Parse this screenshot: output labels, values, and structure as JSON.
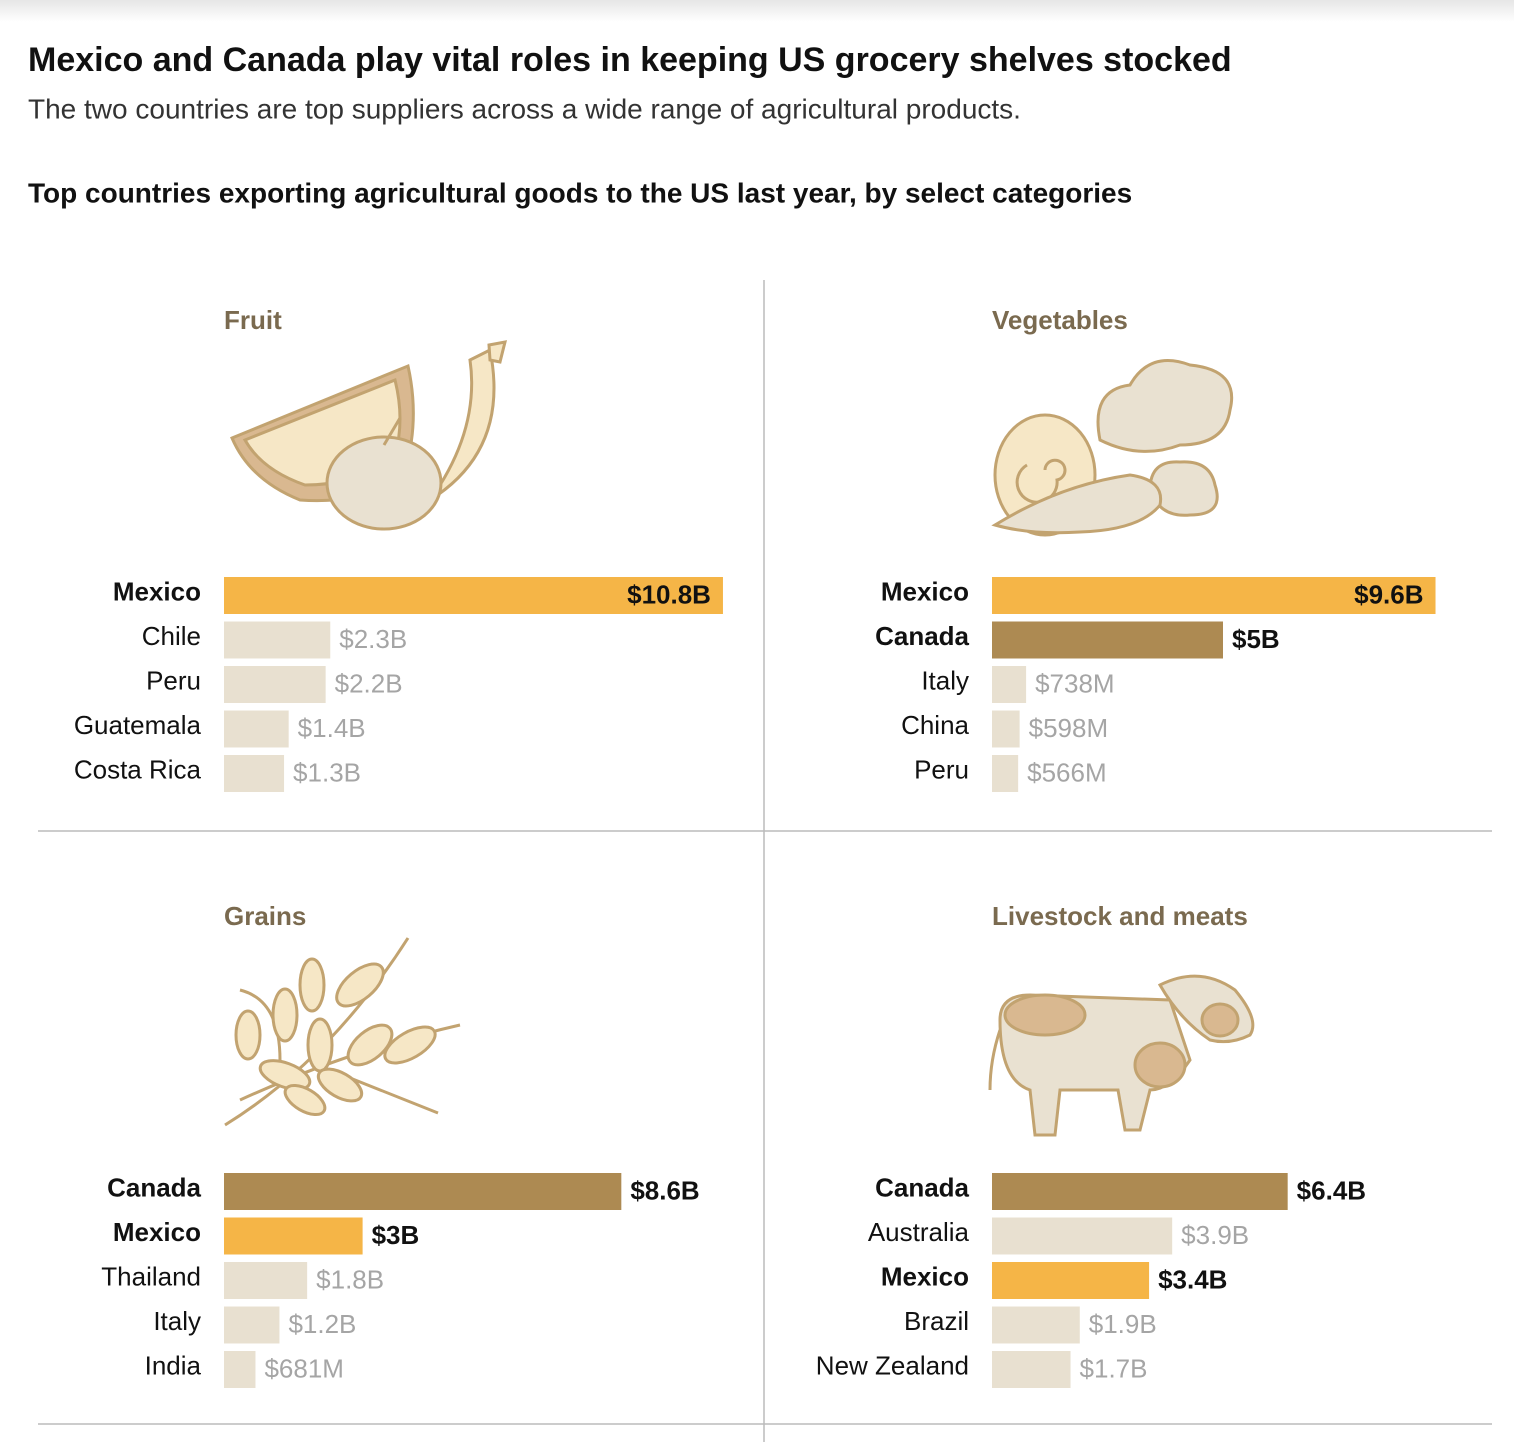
{
  "header": {
    "title": "Mexico and Canada play vital roles in keeping US grocery shelves stocked",
    "subtitle": "The two countries are top suppliers across a wide range of agricultural products.",
    "chart_heading": "Top countries exporting agricultural goods to the US last year, by select categories"
  },
  "chart_data": [
    {
      "type": "bar",
      "orientation": "horizontal",
      "title": "Fruit",
      "categories": [
        "Mexico",
        "Chile",
        "Peru",
        "Guatemala",
        "Costa Rica"
      ],
      "values": [
        10.8,
        2.3,
        2.2,
        1.4,
        1.3
      ],
      "value_labels": [
        "$10.8B",
        "$2.3B",
        "$2.2B",
        "$1.4B",
        "$1.3B"
      ],
      "colors": [
        "#f5b547",
        "#e8e0d0",
        "#e8e0d0",
        "#e8e0d0",
        "#e8e0d0"
      ],
      "highlight": [
        true,
        false,
        false,
        false,
        false
      ]
    },
    {
      "type": "bar",
      "orientation": "horizontal",
      "title": "Vegetables",
      "categories": [
        "Mexico",
        "Canada",
        "Italy",
        "China",
        "Peru"
      ],
      "values": [
        9.6,
        5,
        0.738,
        0.598,
        0.566
      ],
      "value_labels": [
        "$9.6B",
        "$5B",
        "$738M",
        "$598M",
        "$566M"
      ],
      "colors": [
        "#f5b547",
        "#ad8a52",
        "#e8e0d0",
        "#e8e0d0",
        "#e8e0d0"
      ],
      "highlight": [
        true,
        true,
        false,
        false,
        false
      ]
    },
    {
      "type": "bar",
      "orientation": "horizontal",
      "title": "Grains",
      "categories": [
        "Canada",
        "Mexico",
        "Thailand",
        "Italy",
        "India"
      ],
      "values": [
        8.6,
        3,
        1.8,
        1.2,
        0.681
      ],
      "value_labels": [
        "$8.6B",
        "$3B",
        "$1.8B",
        "$1.2B",
        "$681M"
      ],
      "colors": [
        "#ad8a52",
        "#f5b547",
        "#e8e0d0",
        "#e8e0d0",
        "#e8e0d0"
      ],
      "highlight": [
        true,
        true,
        false,
        false,
        false
      ]
    },
    {
      "type": "bar",
      "orientation": "horizontal",
      "title": "Livestock and meats",
      "categories": [
        "Canada",
        "Australia",
        "Mexico",
        "Brazil",
        "New Zealand"
      ],
      "values": [
        6.4,
        3.9,
        3.4,
        1.9,
        1.7
      ],
      "value_labels": [
        "$6.4B",
        "$3.9B",
        "$3.4B",
        "$1.9B",
        "$1.7B"
      ],
      "colors": [
        "#ad8a52",
        "#e8e0d0",
        "#f5b547",
        "#e8e0d0",
        "#e8e0d0"
      ],
      "highlight": [
        true,
        false,
        true,
        false,
        false
      ]
    }
  ]
}
